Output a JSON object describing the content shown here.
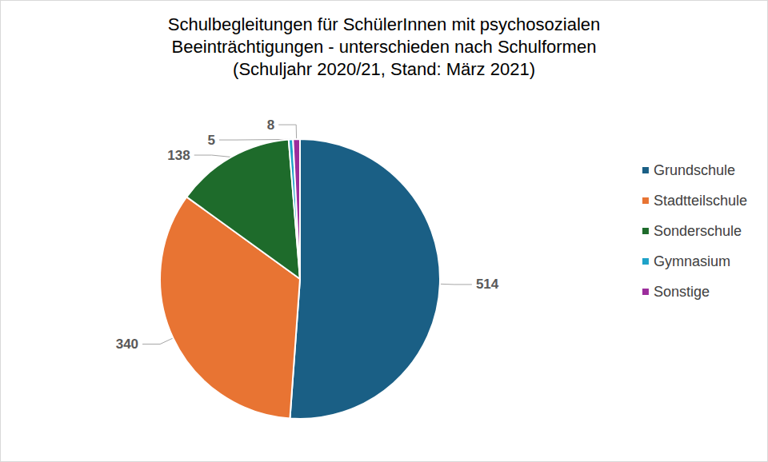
{
  "chart_data": {
    "type": "pie",
    "title": "Schulbegleitungen für SchülerInnen mit psychosozialen\nBeeinträchtigungen - unterschieden nach Schulformen\n(Schuljahr 2020/21, Stand: März 2021)",
    "categories": [
      "Grundschule",
      "Stadtteilschule",
      "Sonderschule",
      "Gymnasium",
      "Sonstige"
    ],
    "values": [
      514,
      340,
      138,
      5,
      8
    ],
    "colors": [
      "#1a5f85",
      "#e87433",
      "#1e6b2b",
      "#1ea2c8",
      "#9c2d9c"
    ],
    "data_labels": true,
    "legend": "right"
  }
}
